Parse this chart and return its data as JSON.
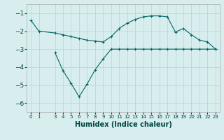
{
  "xlabel": "Humidex (Indice chaleur)",
  "background_color": "#d8eeee",
  "grid_color": "#b8d8d8",
  "line_color": "#006666",
  "x_line1": [
    0,
    1,
    3,
    4,
    5,
    6,
    7,
    8,
    9,
    10,
    11,
    12,
    13,
    14,
    15,
    16,
    17,
    18,
    19,
    20,
    21,
    22,
    23
  ],
  "y_line1": [
    -1.4,
    -2.0,
    -2.1,
    -2.2,
    -2.3,
    -2.4,
    -2.5,
    -2.55,
    -2.6,
    -2.3,
    -1.85,
    -1.55,
    -1.35,
    -1.2,
    -1.15,
    -1.15,
    -1.2,
    -2.05,
    -1.85,
    -2.2,
    -2.5,
    -2.6,
    -3.0
  ],
  "x_line2": [
    3,
    4,
    5,
    6,
    7,
    8,
    9,
    10,
    11,
    12,
    13,
    14,
    15,
    16,
    17,
    18,
    19,
    20,
    21,
    22,
    23
  ],
  "y_line2": [
    -3.2,
    -4.2,
    -4.9,
    -5.65,
    -4.95,
    -4.15,
    -3.55,
    -3.0,
    -3.0,
    -3.0,
    -3.0,
    -3.0,
    -3.0,
    -3.0,
    -3.0,
    -3.0,
    -3.0,
    -3.0,
    -3.0,
    -3.0,
    -3.0
  ],
  "ylim": [
    -6.5,
    -0.5
  ],
  "xlim": [
    -0.5,
    23.5
  ],
  "yticks": [
    -6,
    -5,
    -4,
    -3,
    -2,
    -1
  ],
  "xticks": [
    0,
    1,
    3,
    4,
    5,
    6,
    7,
    8,
    9,
    10,
    11,
    12,
    13,
    14,
    15,
    16,
    17,
    18,
    19,
    20,
    21,
    22,
    23
  ],
  "tick_color": "#004444",
  "label_fontsize": 6.5,
  "xlabel_fontsize": 7
}
